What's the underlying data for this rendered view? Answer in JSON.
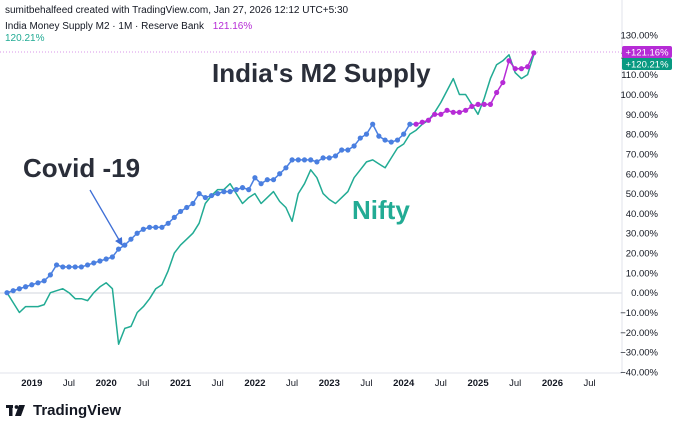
{
  "header": {
    "credit": "sumitbehalfeed created with TradingView.com, Jan 27, 2026 12:12 UTC+5:30",
    "series_title": "India Money Supply M2 · 1M · Reserve Bank",
    "m2_value": "121.16%",
    "nifty_value": "120.21%"
  },
  "brand": {
    "name": "TradingView",
    "logo_icon": "tradingview-logo-icon"
  },
  "chart_data": {
    "type": "line",
    "annotations": [
      {
        "text": "India's M2 Supply",
        "color": "#2a2e39"
      },
      {
        "text": "Covid -19",
        "color": "#2a2e39"
      },
      {
        "text": "Nifty",
        "color": "#22ab94"
      }
    ],
    "x_tick_labels": [
      "2019",
      "Jul",
      "2020",
      "Jul",
      "2021",
      "Jul",
      "2022",
      "Jul",
      "2023",
      "Jul",
      "2024",
      "Jul",
      "2025",
      "Jul",
      "2026",
      "Jul"
    ],
    "y_tick_labels": [
      "130.00%",
      "120.00%",
      "110.00%",
      "100.00%",
      "90.00%",
      "80.00%",
      "70.00%",
      "60.00%",
      "50.00%",
      "40.00%",
      "30.00%",
      "20.00%",
      "10.00%",
      "0.00%",
      "−10.00%",
      "−20.00%",
      "−30.00%",
      "−40.00%"
    ],
    "ylim": [
      -40,
      130
    ],
    "xlim": [
      "2018-09",
      "2026-09"
    ],
    "grid": false,
    "last_value_badges": [
      {
        "text": "+121.16%",
        "color": "#b62bd6"
      },
      {
        "text": "+120.21%",
        "color": "#089981"
      }
    ],
    "series": [
      {
        "name": "India Money Supply M2",
        "color_early": "#4a7fe0",
        "color_late": "#b62bd6",
        "x": [
          "2018-09",
          "2018-10",
          "2018-11",
          "2018-12",
          "2019-01",
          "2019-02",
          "2019-03",
          "2019-04",
          "2019-05",
          "2019-06",
          "2019-07",
          "2019-08",
          "2019-09",
          "2019-10",
          "2019-11",
          "2019-12",
          "2020-01",
          "2020-02",
          "2020-03",
          "2020-04",
          "2020-05",
          "2020-06",
          "2020-07",
          "2020-08",
          "2020-09",
          "2020-10",
          "2020-11",
          "2020-12",
          "2021-01",
          "2021-02",
          "2021-03",
          "2021-04",
          "2021-05",
          "2021-06",
          "2021-07",
          "2021-08",
          "2021-09",
          "2021-10",
          "2021-11",
          "2021-12",
          "2022-01",
          "2022-02",
          "2022-03",
          "2022-04",
          "2022-05",
          "2022-06",
          "2022-07",
          "2022-08",
          "2022-09",
          "2022-10",
          "2022-11",
          "2022-12",
          "2023-01",
          "2023-02",
          "2023-03",
          "2023-04",
          "2023-05",
          "2023-06",
          "2023-07",
          "2023-08",
          "2023-09",
          "2023-10",
          "2023-11",
          "2023-12",
          "2024-01",
          "2024-02",
          "2024-03",
          "2024-04",
          "2024-05",
          "2024-06",
          "2024-07",
          "2024-08",
          "2024-09",
          "2024-10",
          "2024-11",
          "2024-12",
          "2025-01",
          "2025-02",
          "2025-03",
          "2025-04",
          "2025-05",
          "2025-06",
          "2025-07",
          "2025-08",
          "2025-09",
          "2025-10"
        ],
        "values": [
          0,
          1,
          2,
          3,
          4,
          5,
          6,
          9,
          14,
          13,
          13,
          13,
          13,
          14,
          15,
          16,
          17,
          18,
          22,
          24,
          27,
          30,
          32,
          33,
          33,
          33,
          35,
          38,
          41,
          43,
          45,
          50,
          48,
          49,
          50,
          51,
          51,
          52,
          53,
          52,
          58,
          55,
          57,
          57,
          60,
          63,
          67,
          67,
          67,
          67,
          66,
          68,
          68,
          69,
          72,
          72,
          74,
          78,
          80,
          85,
          79,
          77,
          76,
          77,
          80,
          85,
          85,
          86,
          87,
          90,
          90,
          92,
          91,
          91,
          92,
          94,
          95,
          95,
          95,
          101,
          106,
          117,
          113,
          113,
          114,
          121
        ]
      },
      {
        "name": "Nifty",
        "color": "#22ab94",
        "x": [
          "2018-09",
          "2018-10",
          "2018-11",
          "2018-12",
          "2019-01",
          "2019-02",
          "2019-03",
          "2019-04",
          "2019-05",
          "2019-06",
          "2019-07",
          "2019-08",
          "2019-09",
          "2019-10",
          "2019-11",
          "2019-12",
          "2020-01",
          "2020-02",
          "2020-03",
          "2020-04",
          "2020-05",
          "2020-06",
          "2020-07",
          "2020-08",
          "2020-09",
          "2020-10",
          "2020-11",
          "2020-12",
          "2021-01",
          "2021-02",
          "2021-03",
          "2021-04",
          "2021-05",
          "2021-06",
          "2021-07",
          "2021-08",
          "2021-09",
          "2021-10",
          "2021-11",
          "2021-12",
          "2022-01",
          "2022-02",
          "2022-03",
          "2022-04",
          "2022-05",
          "2022-06",
          "2022-07",
          "2022-08",
          "2022-09",
          "2022-10",
          "2022-11",
          "2022-12",
          "2023-01",
          "2023-02",
          "2023-03",
          "2023-04",
          "2023-05",
          "2023-06",
          "2023-07",
          "2023-08",
          "2023-09",
          "2023-10",
          "2023-11",
          "2023-12",
          "2024-01",
          "2024-02",
          "2024-03",
          "2024-04",
          "2024-05",
          "2024-06",
          "2024-07",
          "2024-08",
          "2024-09",
          "2024-10",
          "2024-11",
          "2024-12",
          "2025-01",
          "2025-02",
          "2025-03",
          "2025-04",
          "2025-05",
          "2025-06",
          "2025-07",
          "2025-08",
          "2025-09",
          "2025-10"
        ],
        "values": [
          0,
          -5,
          -10,
          -7,
          -7,
          -7,
          -6,
          0,
          1,
          2,
          0,
          -3,
          -3,
          -4,
          0,
          3,
          5,
          2,
          -26,
          -18,
          -17,
          -10,
          -7,
          -3,
          2,
          4,
          11,
          20,
          24,
          27,
          30,
          35,
          45,
          49,
          52,
          52,
          55,
          50,
          45,
          48,
          50,
          45,
          48,
          51,
          46,
          43,
          36,
          50,
          55,
          62,
          58,
          50,
          47,
          45,
          48,
          51,
          58,
          62,
          66,
          67,
          65,
          63,
          68,
          73,
          75,
          80,
          82,
          85,
          87,
          91,
          96,
          102,
          108,
          100,
          100,
          95,
          90,
          98,
          108,
          115,
          117,
          120,
          111,
          108,
          110,
          120
        ]
      }
    ]
  }
}
